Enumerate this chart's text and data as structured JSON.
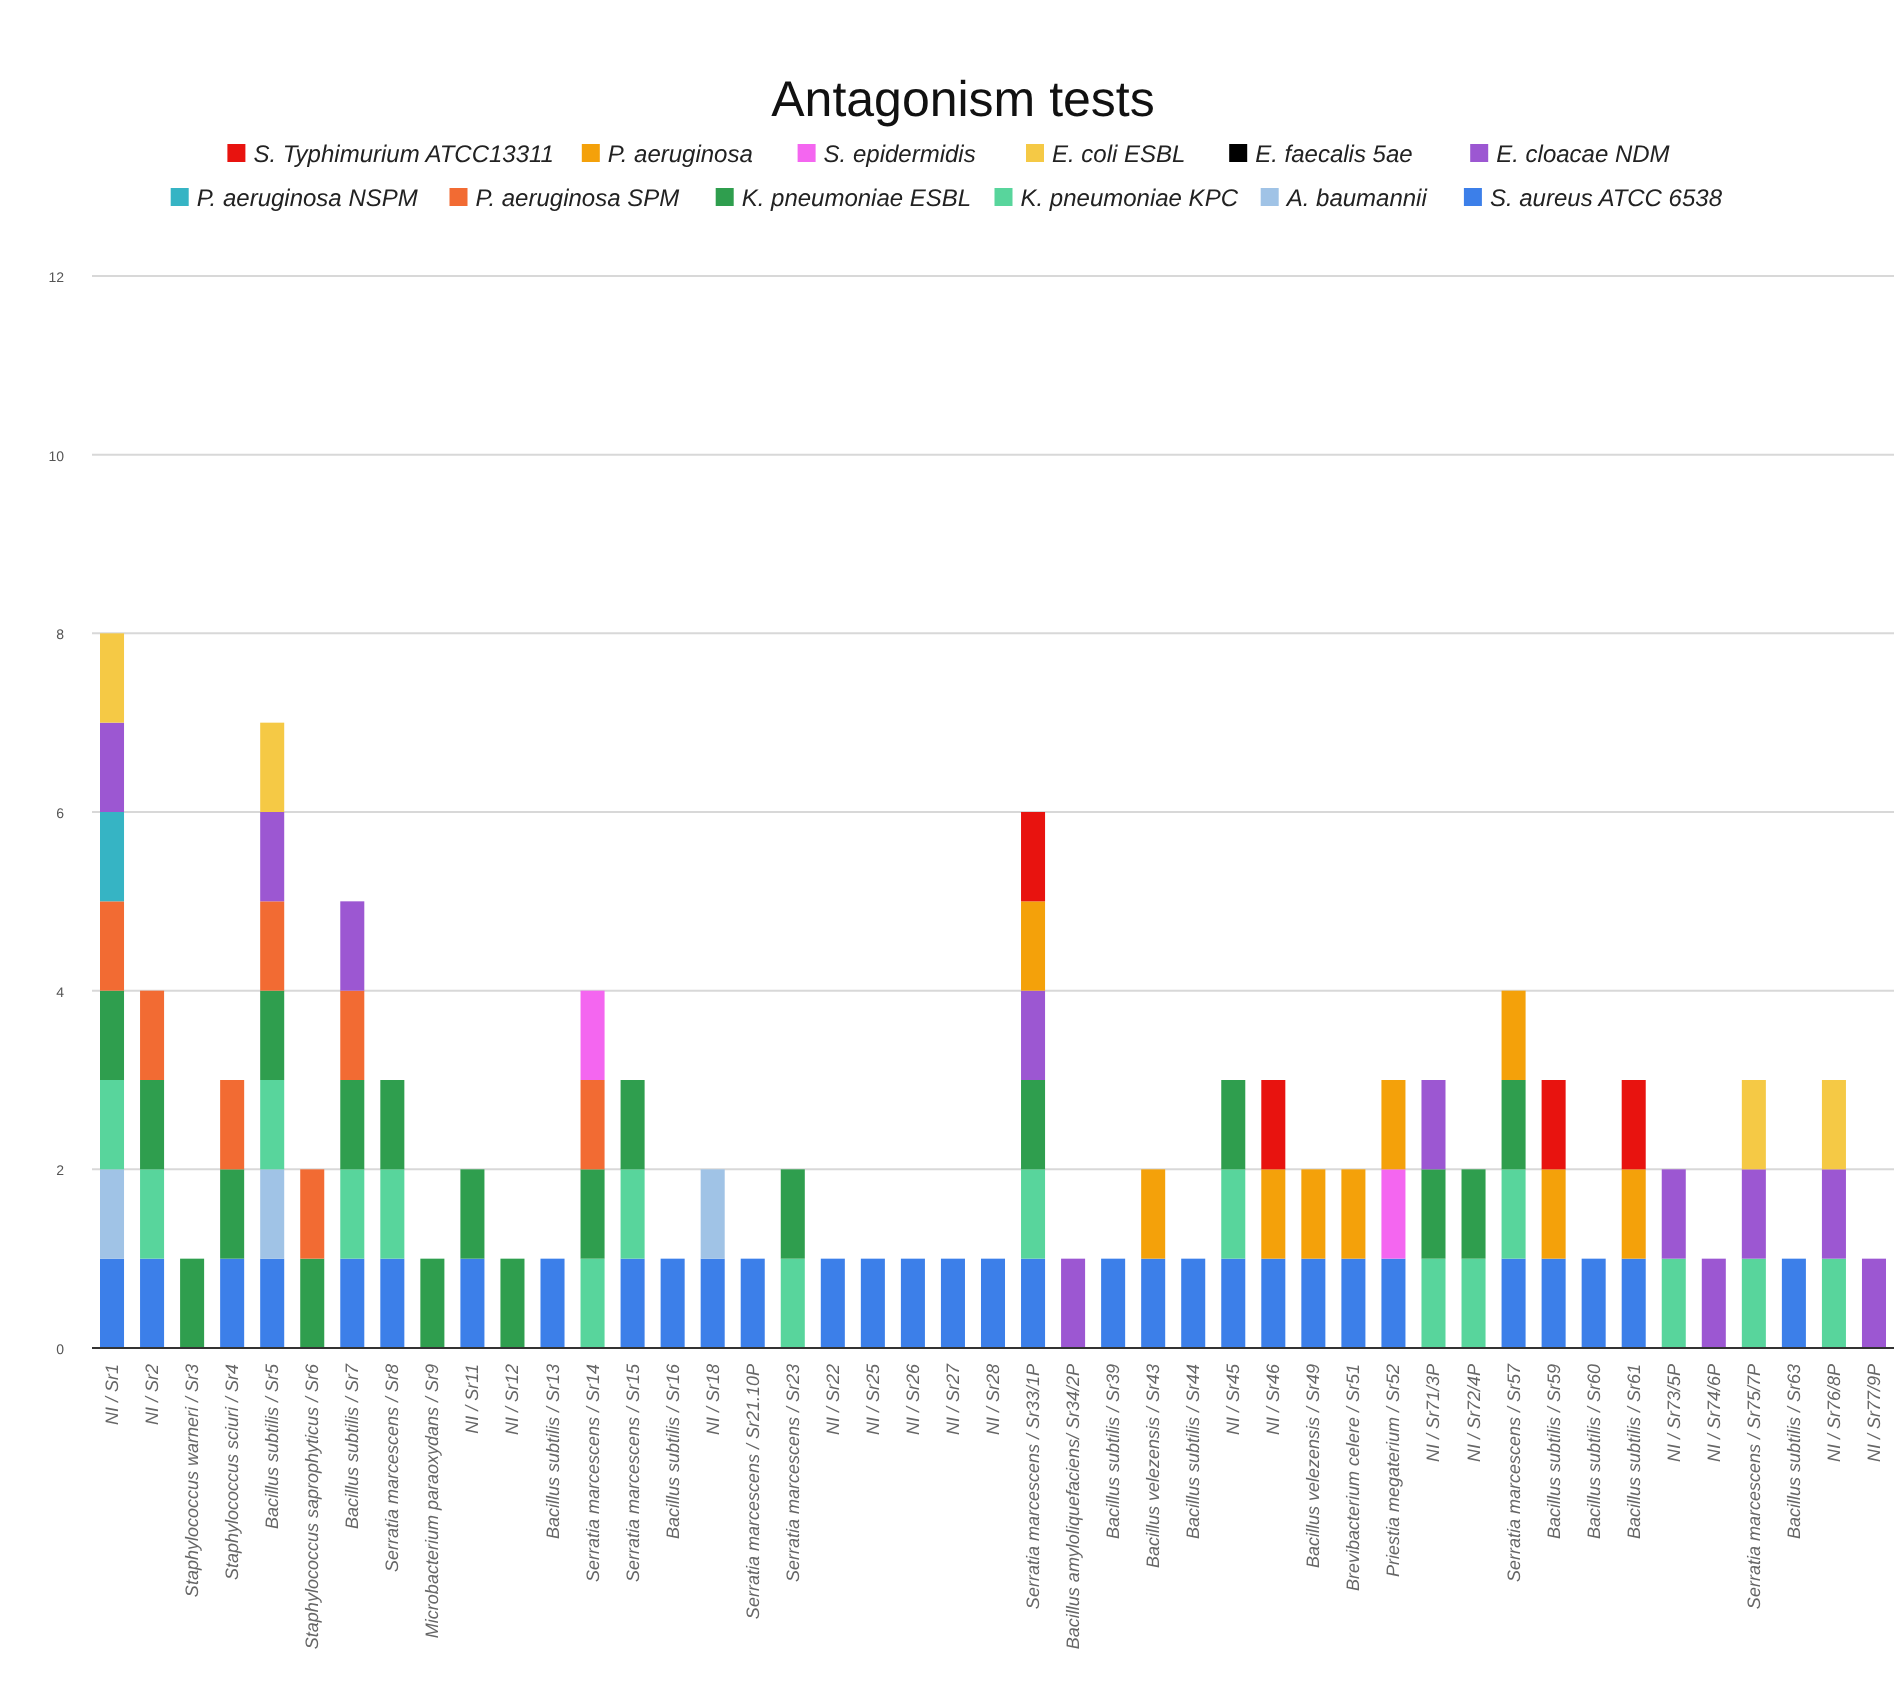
{
  "chart_data": {
    "type": "bar",
    "title": "Antagonism tests",
    "stacked": true,
    "legend": "top",
    "grid": "y",
    "ylim": [
      0,
      12
    ],
    "yticks": [
      0,
      2,
      4,
      6,
      8,
      10,
      12
    ],
    "categories": [
      "NI / Sr1",
      "NI / Sr2",
      "Staphylococcus warneri / Sr3",
      "Staphylococcus sciuri / Sr4",
      "Bacillus subtilis / Sr5",
      "Staphylococcus saprophyticus / Sr6",
      "Bacillus subtilis / Sr7",
      "Serratia marcescens / Sr8",
      "Microbacterium paraoxydans / Sr9",
      "NI / Sr11",
      "NI / Sr12",
      "Bacillus subtilis / Sr13",
      "Serratia marcescens / Sr14",
      "Serratia marcescens / Sr15",
      "Bacillus subtilis / Sr16",
      "NI / Sr18",
      "Serratia marcescens / Sr21.10P",
      "Serratia marcescens / Sr23",
      "NI / Sr22",
      "NI / Sr25",
      "NI / Sr26",
      "NI / Sr27",
      "NI / Sr28",
      "Serratia marcescens / Sr33/1P",
      "Bacillus amyloliquefaciens/ Sr34/2P",
      "Bacillus subtilis / Sr39",
      "Bacillus velezensis / Sr43",
      "Bacillus subtilis / Sr44",
      "NI / Sr45",
      "NI / Sr46",
      "Bacillus velezensis / Sr49",
      "Brevibacterium celere / Sr51",
      "Priestia megaterium / Sr52",
      "NI / Sr71/3P",
      "NI / Sr72/4P",
      "Serratia marcescens / Sr57",
      "Bacillus subtilis / Sr59",
      "Bacillus subtilis / Sr60",
      "Bacillus subtilis / Sr61",
      "NI / Sr73/5P",
      "NI / Sr74/6P",
      "Serratia marcescens / Sr75/7P",
      "Bacillus subtilis / Sr63",
      "NI / Sr76/8P",
      "NI / Sr77/9P"
    ],
    "series": [
      {
        "name": "S. aureus ATCC 6538",
        "color": "#3c7fe9",
        "values": [
          1,
          1,
          0,
          1,
          1,
          0,
          1,
          1,
          0,
          1,
          0,
          1,
          0,
          1,
          1,
          1,
          1,
          0,
          1,
          1,
          1,
          1,
          1,
          1,
          0,
          1,
          1,
          1,
          1,
          1,
          1,
          1,
          1,
          0,
          0,
          1,
          1,
          1,
          1,
          0,
          0,
          0,
          1,
          0,
          0
        ]
      },
      {
        "name": "A. baumannii",
        "color": "#a0c3e6",
        "values": [
          1,
          0,
          0,
          0,
          1,
          0,
          0,
          0,
          0,
          0,
          0,
          0,
          0,
          0,
          0,
          1,
          0,
          0,
          0,
          0,
          0,
          0,
          0,
          0,
          0,
          0,
          0,
          0,
          0,
          0,
          0,
          0,
          0,
          0,
          0,
          0,
          0,
          0,
          0,
          0,
          0,
          0,
          0,
          0,
          0
        ]
      },
      {
        "name": "K. pneumoniae KPC",
        "color": "#58d59c",
        "values": [
          1,
          1,
          0,
          0,
          1,
          0,
          1,
          1,
          0,
          0,
          0,
          0,
          1,
          1,
          0,
          0,
          0,
          1,
          0,
          0,
          0,
          0,
          0,
          1,
          0,
          0,
          0,
          0,
          1,
          0,
          0,
          0,
          0,
          1,
          1,
          1,
          0,
          0,
          0,
          1,
          0,
          1,
          0,
          1,
          0
        ]
      },
      {
        "name": "K. pneumoniae ESBL",
        "color": "#2f9e4e",
        "values": [
          1,
          1,
          1,
          1,
          1,
          1,
          1,
          1,
          1,
          1,
          1,
          0,
          1,
          1,
          0,
          0,
          0,
          1,
          0,
          0,
          0,
          0,
          0,
          1,
          0,
          0,
          0,
          0,
          1,
          0,
          0,
          0,
          0,
          1,
          1,
          1,
          0,
          0,
          0,
          0,
          0,
          0,
          0,
          0,
          0
        ]
      },
      {
        "name": "P. aeruginosa SPM",
        "color": "#f26b33",
        "values": [
          1,
          1,
          0,
          1,
          1,
          1,
          1,
          0,
          0,
          0,
          0,
          0,
          1,
          0,
          0,
          0,
          0,
          0,
          0,
          0,
          0,
          0,
          0,
          0,
          0,
          0,
          0,
          0,
          0,
          0,
          0,
          0,
          0,
          0,
          0,
          0,
          0,
          0,
          0,
          0,
          0,
          0,
          0,
          0,
          0
        ]
      },
      {
        "name": "P. aeruginosa NSPM",
        "color": "#36b4c4",
        "values": [
          1,
          0,
          0,
          0,
          0,
          0,
          0,
          0,
          0,
          0,
          0,
          0,
          0,
          0,
          0,
          0,
          0,
          0,
          0,
          0,
          0,
          0,
          0,
          0,
          0,
          0,
          0,
          0,
          0,
          0,
          0,
          0,
          0,
          0,
          0,
          0,
          0,
          0,
          0,
          0,
          0,
          0,
          0,
          0,
          0
        ]
      },
      {
        "name": "E. cloacae NDM",
        "color": "#9c57d2",
        "values": [
          1,
          0,
          0,
          0,
          1,
          0,
          1,
          0,
          0,
          0,
          0,
          0,
          0,
          0,
          0,
          0,
          0,
          0,
          0,
          0,
          0,
          0,
          0,
          1,
          1,
          0,
          0,
          0,
          0,
          0,
          0,
          0,
          0,
          1,
          0,
          0,
          0,
          0,
          0,
          1,
          1,
          1,
          0,
          1,
          1
        ]
      },
      {
        "name": "E. faecalis 5ae",
        "color": "#000000",
        "values": [
          0,
          0,
          0,
          0,
          0,
          0,
          0,
          0,
          0,
          0,
          0,
          0,
          0,
          0,
          0,
          0,
          0,
          0,
          0,
          0,
          0,
          0,
          0,
          0,
          0,
          0,
          0,
          0,
          0,
          0,
          0,
          0,
          0,
          0,
          0,
          0,
          0,
          0,
          0,
          0,
          0,
          0,
          0,
          0,
          0
        ]
      },
      {
        "name": "E. coli ESBL",
        "color": "#f5c945",
        "values": [
          1,
          0,
          0,
          0,
          1,
          0,
          0,
          0,
          0,
          0,
          0,
          0,
          0,
          0,
          0,
          0,
          0,
          0,
          0,
          0,
          0,
          0,
          0,
          0,
          0,
          0,
          0,
          0,
          0,
          0,
          0,
          0,
          0,
          0,
          0,
          0,
          0,
          0,
          0,
          0,
          0,
          1,
          0,
          1,
          0
        ]
      },
      {
        "name": "S. epidermidis",
        "color": "#f466f0",
        "values": [
          0,
          0,
          0,
          0,
          0,
          0,
          0,
          0,
          0,
          0,
          0,
          0,
          1,
          0,
          0,
          0,
          0,
          0,
          0,
          0,
          0,
          0,
          0,
          0,
          0,
          0,
          0,
          0,
          0,
          0,
          0,
          0,
          1,
          0,
          0,
          0,
          0,
          0,
          0,
          0,
          0,
          0,
          0,
          0,
          0
        ]
      },
      {
        "name": "P. aeruginosa",
        "color": "#f4a10a",
        "values": [
          0,
          0,
          0,
          0,
          0,
          0,
          0,
          0,
          0,
          0,
          0,
          0,
          0,
          0,
          0,
          0,
          0,
          0,
          0,
          0,
          0,
          0,
          0,
          1,
          0,
          0,
          1,
          0,
          0,
          1,
          1,
          1,
          1,
          0,
          0,
          1,
          1,
          0,
          1,
          0,
          0,
          0,
          0,
          0,
          0
        ]
      },
      {
        "name": "S. Typhimurium ATCC13311",
        "color": "#e8130f",
        "values": [
          0,
          0,
          0,
          0,
          0,
          0,
          0,
          0,
          0,
          0,
          0,
          0,
          0,
          0,
          0,
          0,
          0,
          0,
          0,
          0,
          0,
          0,
          0,
          1,
          0,
          0,
          0,
          0,
          0,
          1,
          0,
          0,
          0,
          0,
          0,
          0,
          1,
          0,
          1,
          0,
          0,
          0,
          0,
          0,
          0
        ]
      }
    ]
  }
}
